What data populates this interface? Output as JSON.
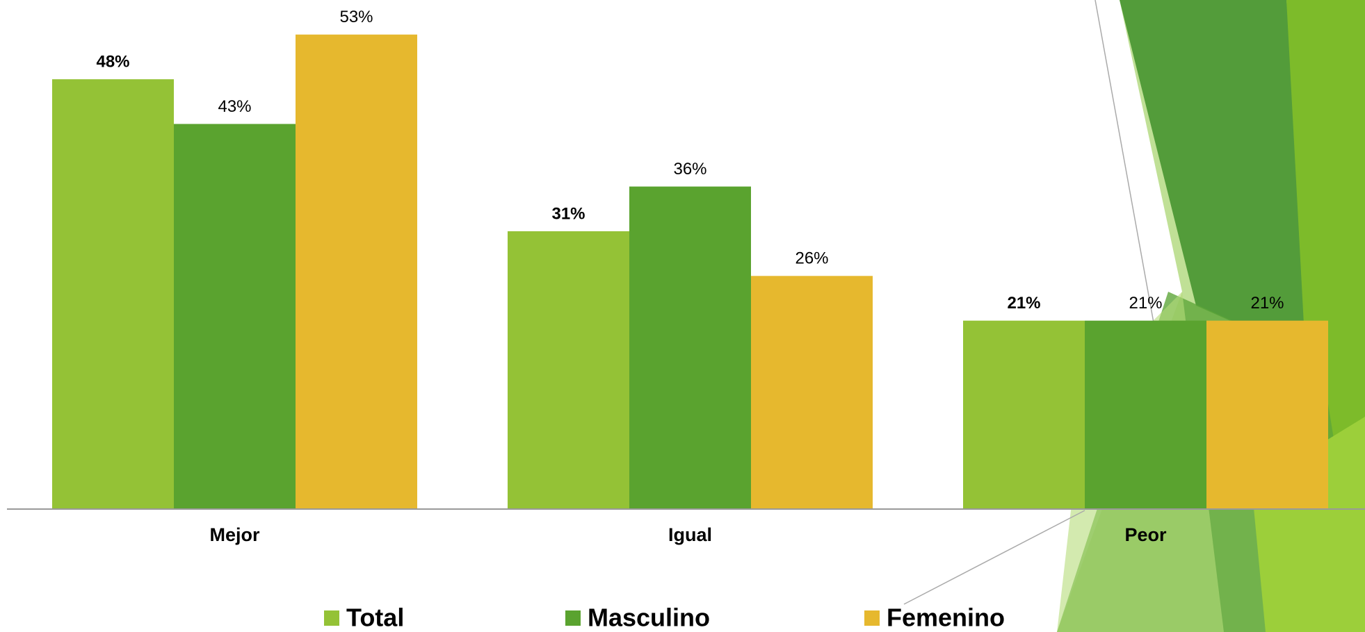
{
  "chart_data": {
    "type": "bar",
    "categories": [
      "Mejor",
      "Igual",
      "Peor"
    ],
    "series": [
      {
        "name": "Total",
        "color": "#94c236",
        "values": [
          48,
          31,
          21
        ],
        "value_labels": [
          "48%",
          "31%",
          "21%"
        ]
      },
      {
        "name": "Masculino",
        "color": "#5aa32f",
        "values": [
          43,
          36,
          21
        ],
        "value_labels": [
          "43%",
          "36%",
          "21%"
        ]
      },
      {
        "name": "Femenino",
        "color": "#e6b82e",
        "values": [
          53,
          26,
          21
        ],
        "value_labels": [
          "53%",
          "26%",
          "21%"
        ]
      }
    ],
    "ylim": [
      0,
      55
    ],
    "grid": false,
    "legend": "bottom"
  }
}
